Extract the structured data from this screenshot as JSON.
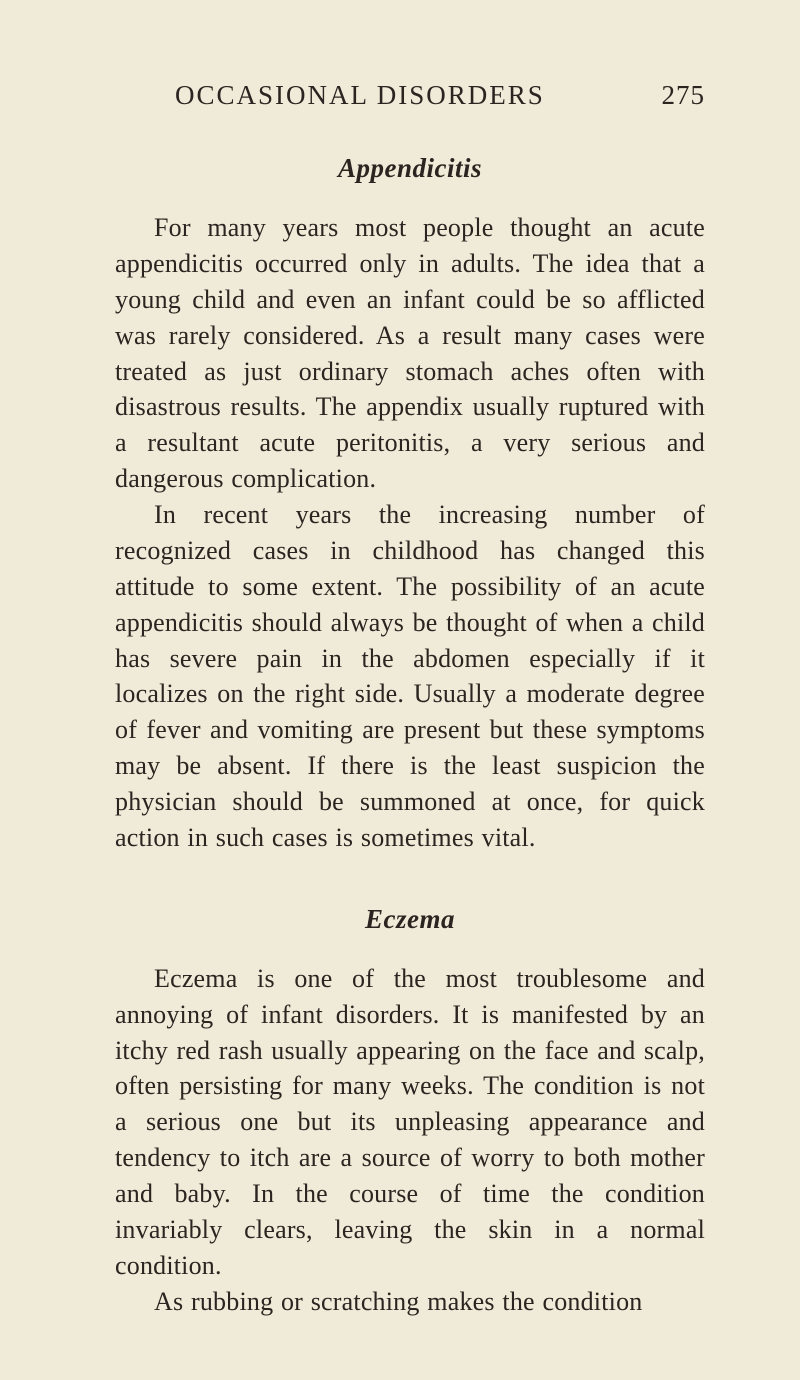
{
  "header": {
    "running_title": "OCCASIONAL DISORDERS",
    "page_number": "275"
  },
  "sections": {
    "s1": {
      "title": "Appendicitis",
      "p1": "For many years most people thought an acute appendicitis occurred only in adults. The idea that a young child and even an infant could be so afflicted was rarely considered. As a result many cases were treated as just ordinary stomach aches often with disastrous results. The appendix usually ruptured with a resultant acute peritonitis, a very serious and dangerous complication.",
      "p2": "In recent years the increasing number of recognized cases in childhood has changed this attitude to some extent. The possibility of an acute appendicitis should always be thought of when a child has severe pain in the abdomen especially if it localizes on the right side. Usually a moderate degree of fever and vomiting are present but these symptoms may be absent. If there is the least suspicion the physician should be summoned at once, for quick action in such cases is sometimes vital."
    },
    "s2": {
      "title": "Eczema",
      "p1": "Eczema is one of the most troublesome and annoying of infant disorders. It is manifested by an itchy red rash usually appearing on the face and scalp, often persisting for many weeks. The condition is not a serious one but its unpleasing appearance and tendency to itch are a source of worry to both mother and baby. In the course of time the condition invariably clears, leaving the skin in a normal condition.",
      "p2": "As rubbing or scratching makes the condition"
    }
  },
  "style": {
    "background_color": "#f0ead8",
    "text_color": "#2a2520",
    "body_fontsize": 26,
    "title_fontsize": 27,
    "header_fontsize": 27
  }
}
